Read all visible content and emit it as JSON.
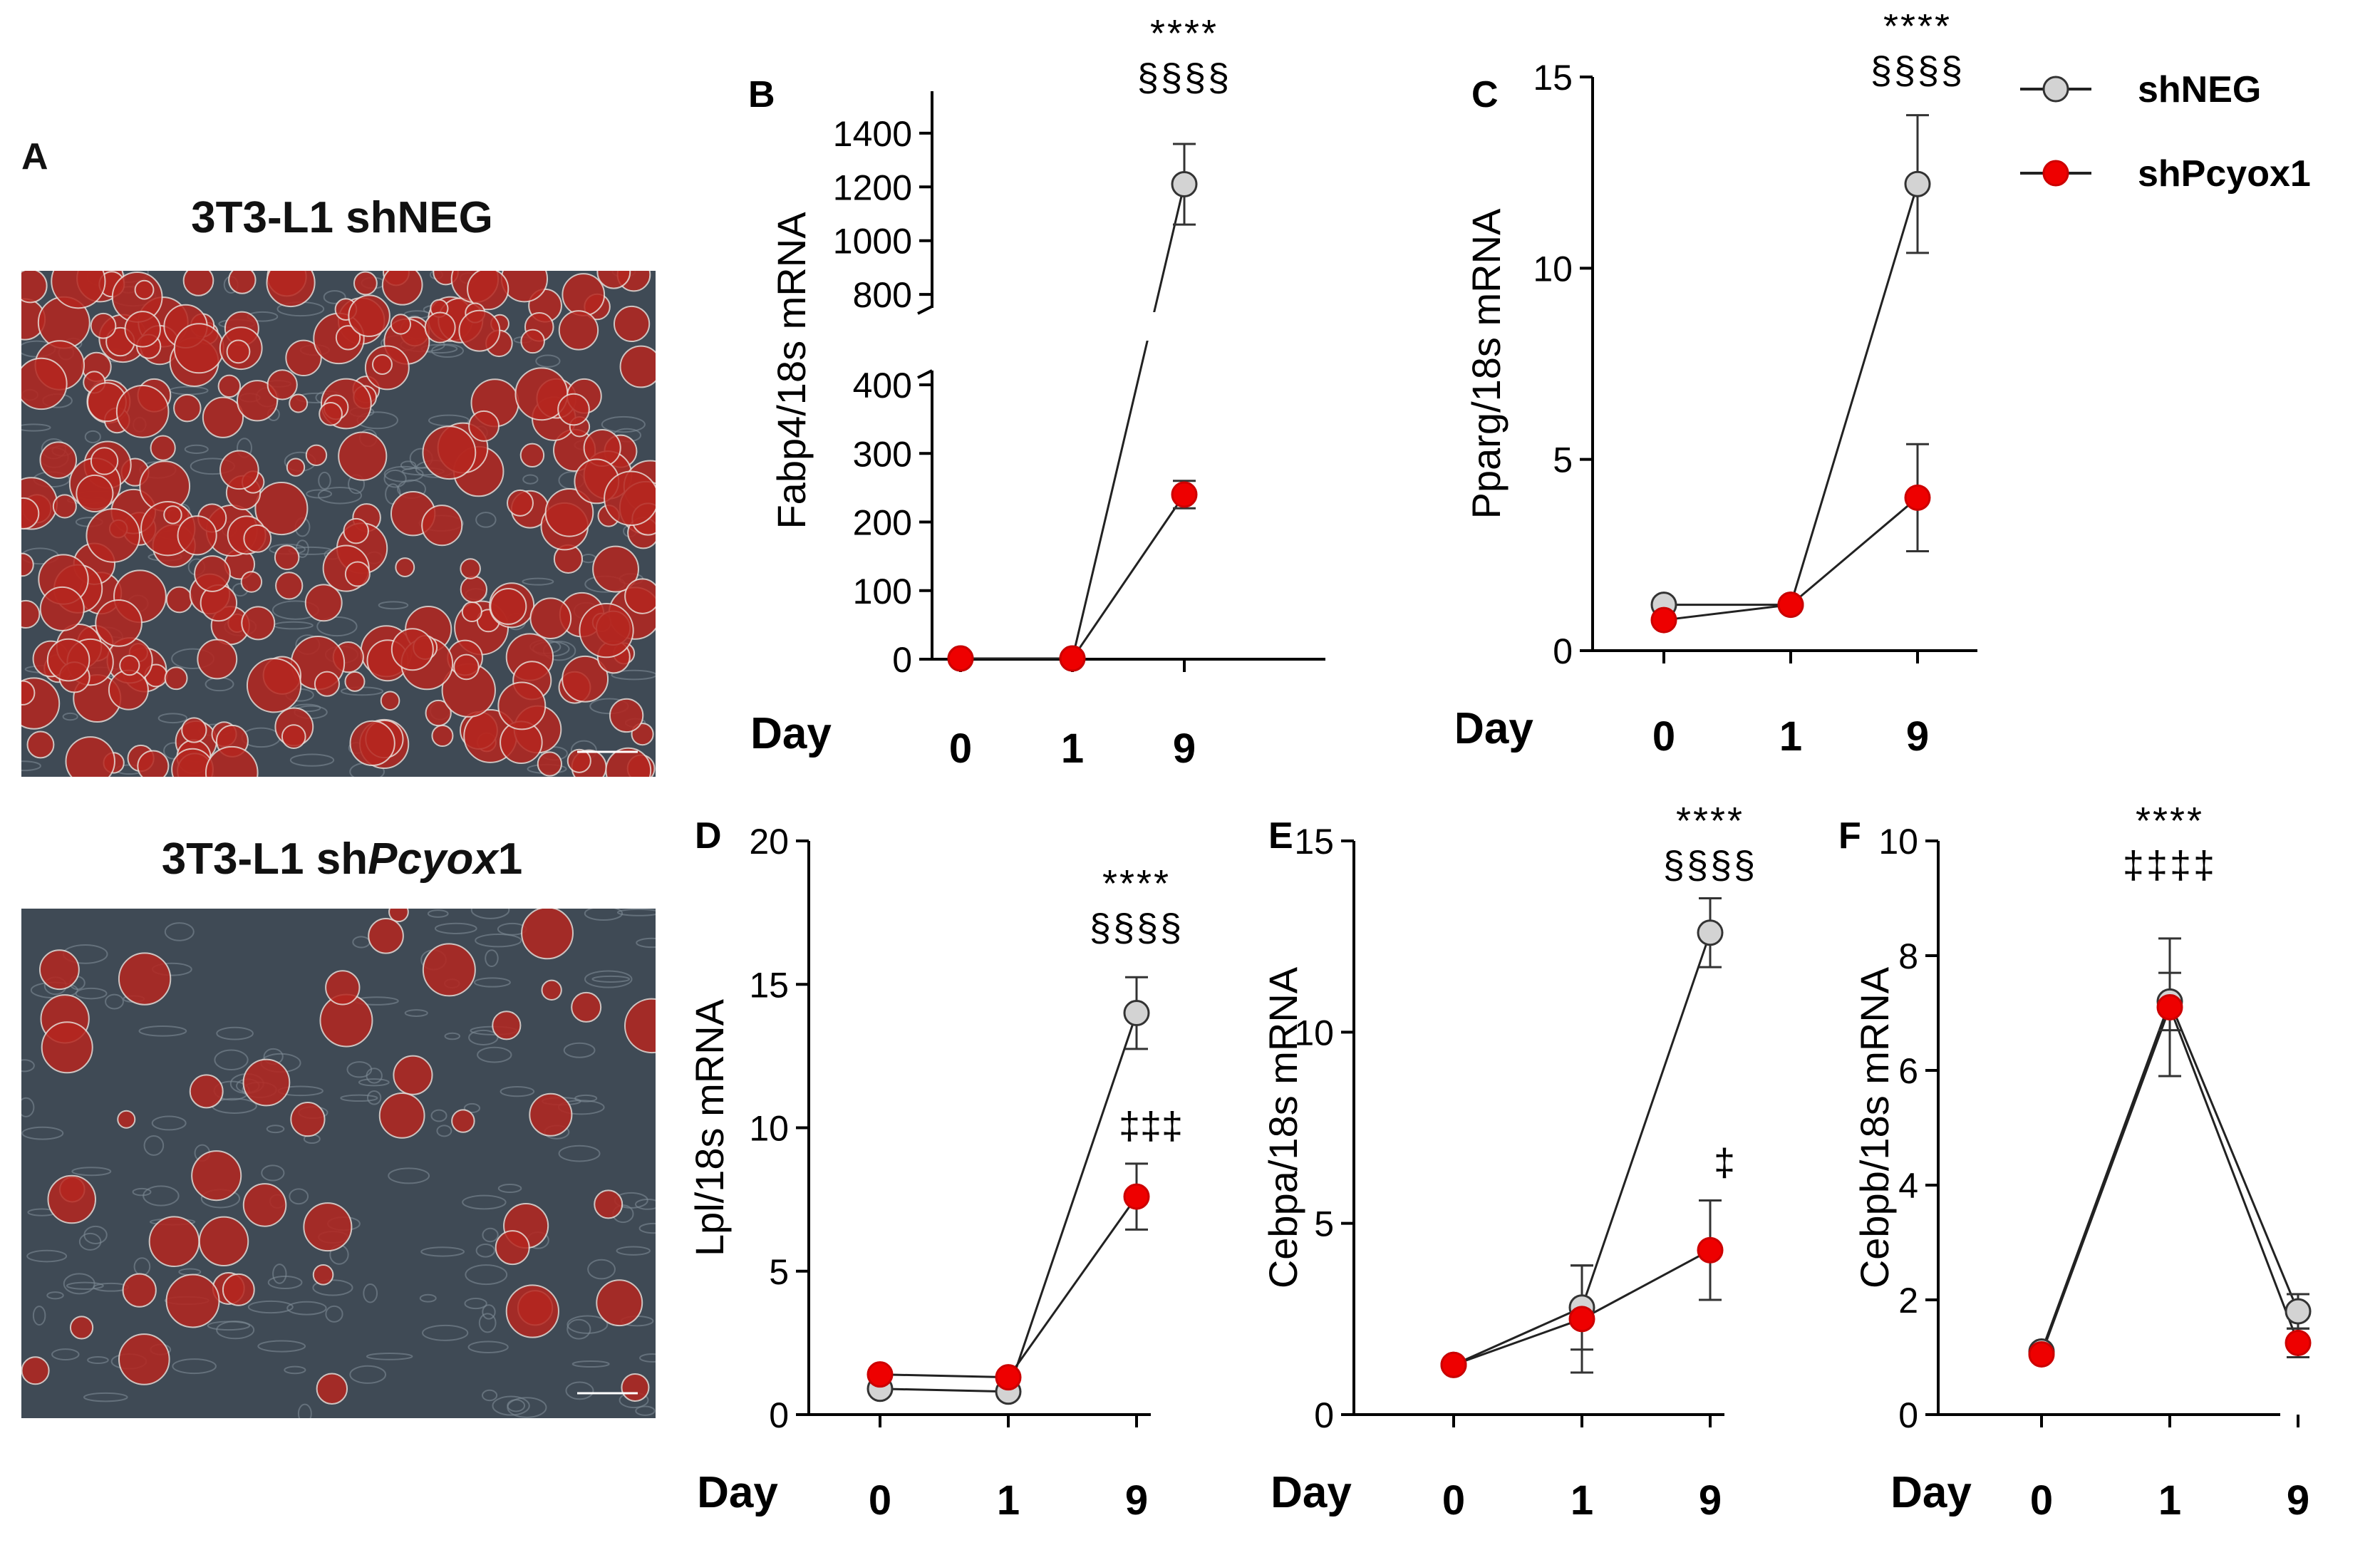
{
  "panels": {
    "A": {
      "letter": "A",
      "top_title": "3T3-L1 shNEG",
      "bottom_title_prefix": "3T3-L1 sh",
      "bottom_title_italic": "Pcyox",
      "bottom_title_suffix": "1"
    }
  },
  "legend": {
    "items": [
      {
        "name": "shNEG",
        "color": "#d3d3d3"
      },
      {
        "name": "shPcyox1",
        "color": "#ee0000"
      }
    ]
  },
  "colors": {
    "shNEG_fill": "#d3d3d3",
    "shPcyox1_fill": "#ee0000",
    "axis": "#000000",
    "stain": "#b5261f",
    "background_tissue": "#3f4a55"
  },
  "chart_data": [
    {
      "panel": "B",
      "type": "line",
      "xlabel": "Day",
      "ylabel": "Fabp4/18s mRNA",
      "categories": [
        "0",
        "1",
        "9"
      ],
      "y_ticks_lower": [
        "0",
        "100",
        "200",
        "300",
        "400"
      ],
      "y_ticks_upper": [
        "800",
        "1000",
        "1200",
        "1400"
      ],
      "ylim_lower": [
        0,
        400
      ],
      "ylim_upper": [
        750,
        1450
      ],
      "broken_axis": true,
      "series": [
        {
          "name": "shNEG",
          "values": [
            1,
            1,
            1210
          ],
          "errors": [
            0,
            0,
            150
          ]
        },
        {
          "name": "shPcyox1",
          "values": [
            1,
            1,
            240
          ],
          "errors": [
            0,
            0,
            20
          ]
        }
      ],
      "annotations": [
        {
          "category": "9",
          "lines": [
            "****",
            "§§§§"
          ]
        }
      ]
    },
    {
      "panel": "C",
      "type": "line",
      "xlabel": "Day",
      "ylabel": "Pparg/18s mRNA",
      "categories": [
        "0",
        "1",
        "9"
      ],
      "y_ticks": [
        "0",
        "5",
        "10",
        "15"
      ],
      "ylim": [
        0,
        15
      ],
      "series": [
        {
          "name": "shNEG",
          "values": [
            1.2,
            1.2,
            12.2
          ],
          "errors": [
            0,
            0,
            1.8
          ]
        },
        {
          "name": "shPcyox1",
          "values": [
            0.8,
            1.2,
            4.0
          ],
          "errors": [
            0,
            0,
            1.4
          ]
        }
      ],
      "annotations": [
        {
          "category": "9",
          "lines": [
            "****",
            "§§§§"
          ]
        }
      ]
    },
    {
      "panel": "D",
      "type": "line",
      "xlabel": "Day",
      "ylabel": "Lpl/18s mRNA",
      "categories": [
        "0",
        "1",
        "9"
      ],
      "y_ticks": [
        "0",
        "5",
        "10",
        "15",
        "20"
      ],
      "ylim": [
        0,
        20
      ],
      "series": [
        {
          "name": "shNEG",
          "values": [
            0.9,
            0.8,
            14.0
          ],
          "errors": [
            0,
            0,
            1.25
          ]
        },
        {
          "name": "shPcyox1",
          "values": [
            1.4,
            1.3,
            7.6
          ],
          "errors": [
            0,
            0,
            1.15
          ]
        }
      ],
      "annotations": [
        {
          "category": "9",
          "lines": [
            "****",
            "§§§§"
          ]
        },
        {
          "category": "9",
          "lines": [
            "‡‡‡"
          ],
          "near": "shPcyox1"
        }
      ]
    },
    {
      "panel": "E",
      "type": "line",
      "xlabel": "Day",
      "ylabel": "Cebpa/18s mRNA",
      "categories": [
        "0",
        "1",
        "9"
      ],
      "y_ticks": [
        "0",
        "5",
        "10",
        "15"
      ],
      "ylim": [
        0,
        15
      ],
      "series": [
        {
          "name": "shNEG",
          "values": [
            1.3,
            2.8,
            12.6
          ],
          "errors": [
            0,
            1.1,
            0.9
          ]
        },
        {
          "name": "shPcyox1",
          "values": [
            1.3,
            2.5,
            4.3
          ],
          "errors": [
            0,
            1.4,
            1.3
          ]
        }
      ],
      "annotations": [
        {
          "category": "9",
          "lines": [
            "****",
            "§§§§"
          ]
        },
        {
          "category": "9",
          "lines": [
            "‡"
          ],
          "near": "shPcyox1"
        }
      ]
    },
    {
      "panel": "F",
      "type": "line",
      "xlabel": "Day",
      "ylabel": "Cebpb/18s mRNA",
      "categories": [
        "0",
        "1",
        "9"
      ],
      "y_ticks": [
        "0",
        "2",
        "4",
        "6",
        "8",
        "10"
      ],
      "ylim": [
        0,
        10
      ],
      "series": [
        {
          "name": "shNEG",
          "values": [
            1.1,
            7.2,
            1.8
          ],
          "errors": [
            0,
            0.5,
            0.3
          ]
        },
        {
          "name": "shPcyox1",
          "values": [
            1.05,
            7.1,
            1.25
          ],
          "errors": [
            0,
            1.2,
            0.25
          ]
        }
      ],
      "annotations": [
        {
          "category": "1",
          "lines": [
            "****",
            "‡‡‡‡"
          ]
        }
      ]
    }
  ]
}
